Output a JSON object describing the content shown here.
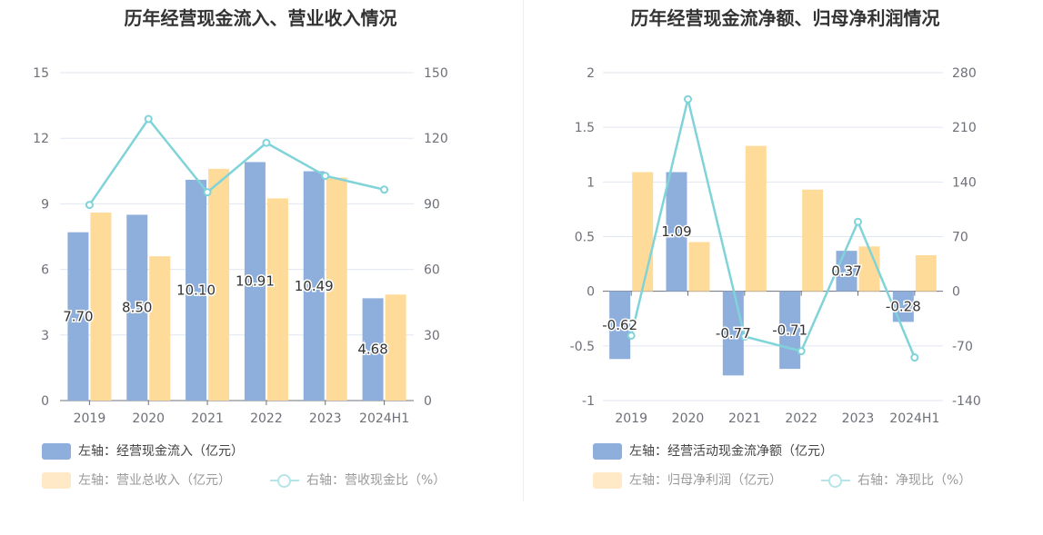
{
  "colors": {
    "bar_primary": "#8eaedc",
    "bar_secondary": "#ffdb99",
    "line": "#7fd3d9",
    "grid": "#e0e6f1",
    "axis": "#6e7079"
  },
  "chart_data": [
    {
      "type": "bar",
      "title": "历年经营现金流入、营业收入情况",
      "categories": [
        "2019",
        "2020",
        "2021",
        "2022",
        "2023",
        "2024H1"
      ],
      "y_left": {
        "ticks": [
          "0",
          "3",
          "6",
          "9",
          "12",
          "15"
        ],
        "min": 0,
        "max": 15
      },
      "y_right": {
        "ticks": [
          "0",
          "30",
          "60",
          "90",
          "120",
          "150"
        ],
        "min": 0,
        "max": 150
      },
      "series": [
        {
          "name": "左轴：经营现金流入（亿元）",
          "kind": "bar",
          "axis": "left",
          "values": [
            7.7,
            8.5,
            10.1,
            10.91,
            10.49,
            4.68
          ],
          "labels": [
            "7.70",
            "8.50",
            "10.10",
            "10.91",
            "10.49",
            "4.68"
          ]
        },
        {
          "name": "左轴：营业总收入（亿元）",
          "kind": "bar",
          "axis": "left",
          "values": [
            8.6,
            6.6,
            10.6,
            9.25,
            10.2,
            4.85
          ]
        },
        {
          "name": "右轴：营收现金比（%）",
          "kind": "line",
          "axis": "right",
          "values": [
            89.5,
            128.8,
            95.3,
            117.9,
            102.8,
            96.5
          ]
        }
      ],
      "grid": true,
      "legend_position": "bottom-left"
    },
    {
      "type": "bar",
      "title": "历年经营现金流净额、归母净利润情况",
      "categories": [
        "2019",
        "2020",
        "2021",
        "2022",
        "2023",
        "2024H1"
      ],
      "y_left": {
        "ticks": [
          "-1",
          "-0.5",
          "0",
          "0.5",
          "1",
          "1.5",
          "2"
        ],
        "min": -1,
        "max": 2
      },
      "y_right": {
        "ticks": [
          "-140",
          "-70",
          "0",
          "70",
          "140",
          "210",
          "280"
        ],
        "min": -140,
        "max": 280
      },
      "series": [
        {
          "name": "左轴：经营活动现金流净额（亿元）",
          "kind": "bar",
          "axis": "left",
          "values": [
            -0.62,
            1.09,
            -0.77,
            -0.71,
            0.37,
            -0.28
          ],
          "labels": [
            "-0.62",
            "1.09",
            "-0.77",
            "-0.71",
            "0.37",
            "-0.28"
          ]
        },
        {
          "name": "左轴：归母净利润（亿元）",
          "kind": "bar",
          "axis": "left",
          "values": [
            1.09,
            0.45,
            1.33,
            0.93,
            0.41,
            0.33
          ]
        },
        {
          "name": "右轴：净现比（%）",
          "kind": "line",
          "axis": "right",
          "values": [
            -56.8,
            246,
            -58.0,
            -76.7,
            88.9,
            -84.8
          ]
        }
      ],
      "grid": true,
      "legend_position": "bottom-left"
    }
  ]
}
